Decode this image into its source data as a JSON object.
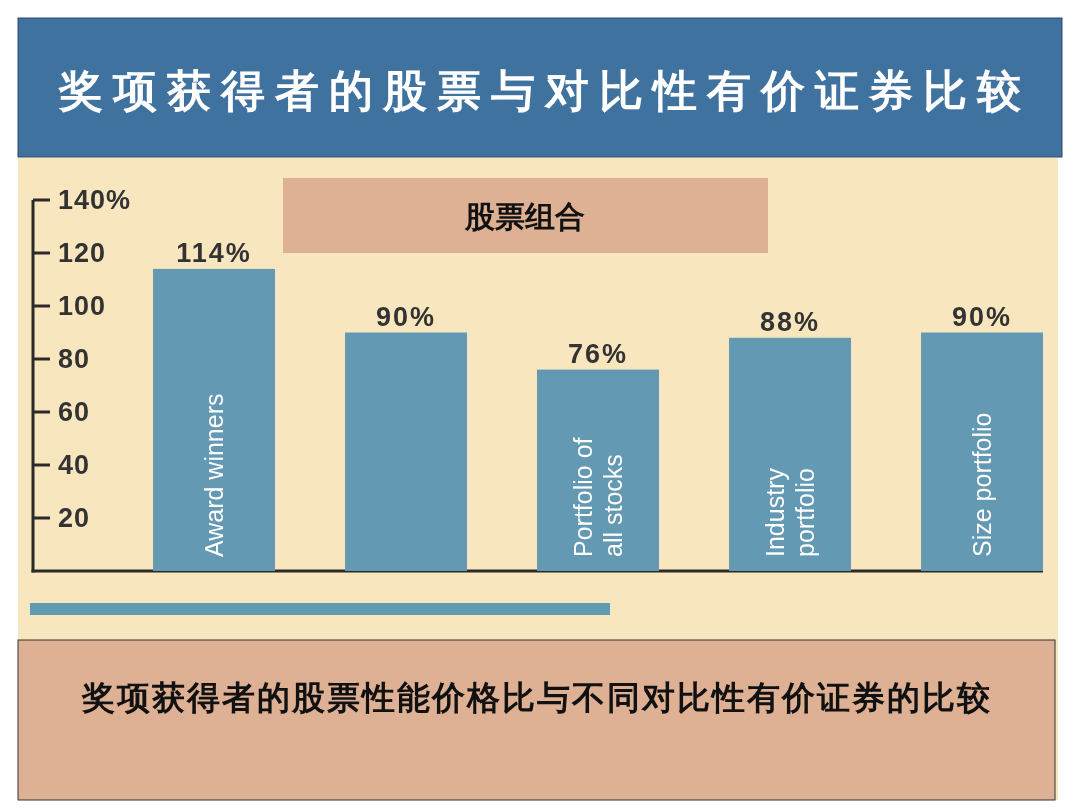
{
  "chart_data": {
    "type": "bar",
    "title": "奖项获得者的股票与对比性有价证券比较",
    "subtitle": "股票组合",
    "categories": [
      "Award winners",
      null,
      "Portfolio of all stocks",
      "Industry portfolio",
      "Size portfolio"
    ],
    "values": [
      114,
      90,
      76,
      88,
      90
    ],
    "color": "#6399b2",
    "value_labels": [
      "114%",
      "90%",
      "76%",
      "88%",
      "90%"
    ],
    "ylim": [
      0,
      140
    ],
    "yticks": [
      20,
      40,
      60,
      80,
      100,
      120,
      {
        "value": 140,
        "label": "140%"
      }
    ],
    "annotations": [
      "奖项获得者的股票性能价格比与不同对比性有价证券的比较"
    ]
  }
}
